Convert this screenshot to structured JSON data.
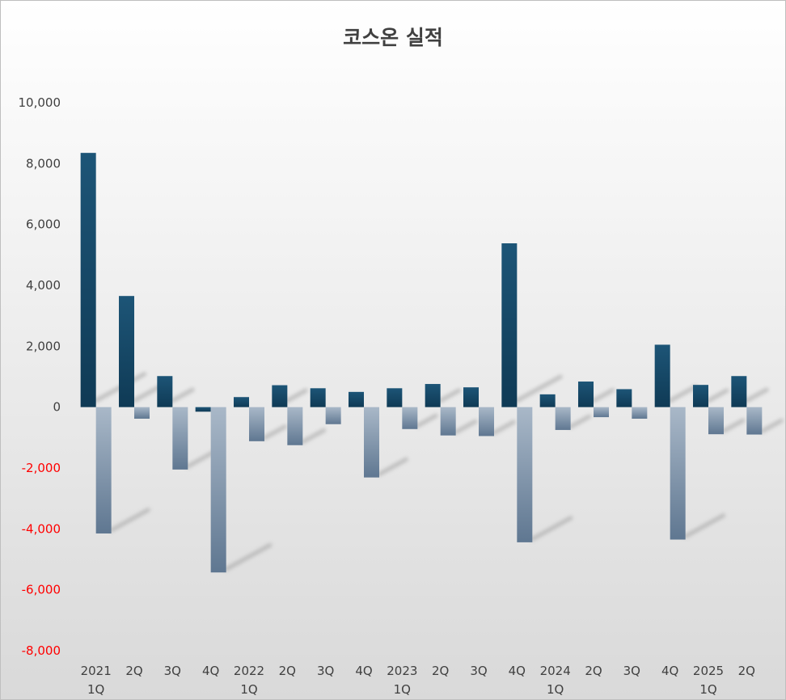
{
  "chart_data": {
    "type": "bar",
    "title": "코스온 실적",
    "xlabel": "",
    "ylabel": "",
    "ylim": [
      -8000,
      10000
    ],
    "y_ticks": [
      10000,
      8000,
      6000,
      4000,
      2000,
      0,
      -2000,
      -4000,
      -6000,
      -8000
    ],
    "y_tick_labels": [
      "10,000",
      "8,000",
      "6,000",
      "4,000",
      "2,000",
      "0",
      "-2,000",
      "-4,000",
      "-6,000",
      "-8,000"
    ],
    "negative_tick_color": "#ff0000",
    "grid": false,
    "legend": "none",
    "categories": [
      [
        "2021",
        "1Q"
      ],
      [
        "2Q"
      ],
      [
        "3Q"
      ],
      [
        "4Q"
      ],
      [
        "2022",
        "1Q"
      ],
      [
        "2Q"
      ],
      [
        "3Q"
      ],
      [
        "4Q"
      ],
      [
        "2023",
        "1Q"
      ],
      [
        "2Q"
      ],
      [
        "3Q"
      ],
      [
        "4Q"
      ],
      [
        "2024",
        "1Q"
      ],
      [
        "2Q"
      ],
      [
        "3Q"
      ],
      [
        "4Q"
      ],
      [
        "2025",
        "1Q"
      ],
      [
        "2Q"
      ]
    ],
    "series": [
      {
        "color": "#1f4e6e",
        "values": [
          8350,
          3650,
          1020,
          -150,
          330,
          720,
          620,
          500,
          620,
          760,
          650,
          5380,
          420,
          840,
          590,
          2050,
          730,
          1020
        ]
      },
      {
        "color": "#7f93a8",
        "values": [
          -4150,
          -380,
          -2050,
          -5430,
          -1120,
          -1250,
          -560,
          -2310,
          -720,
          -930,
          -950,
          -4440,
          -750,
          -330,
          -380,
          -4350,
          -890,
          -900
        ]
      }
    ]
  }
}
